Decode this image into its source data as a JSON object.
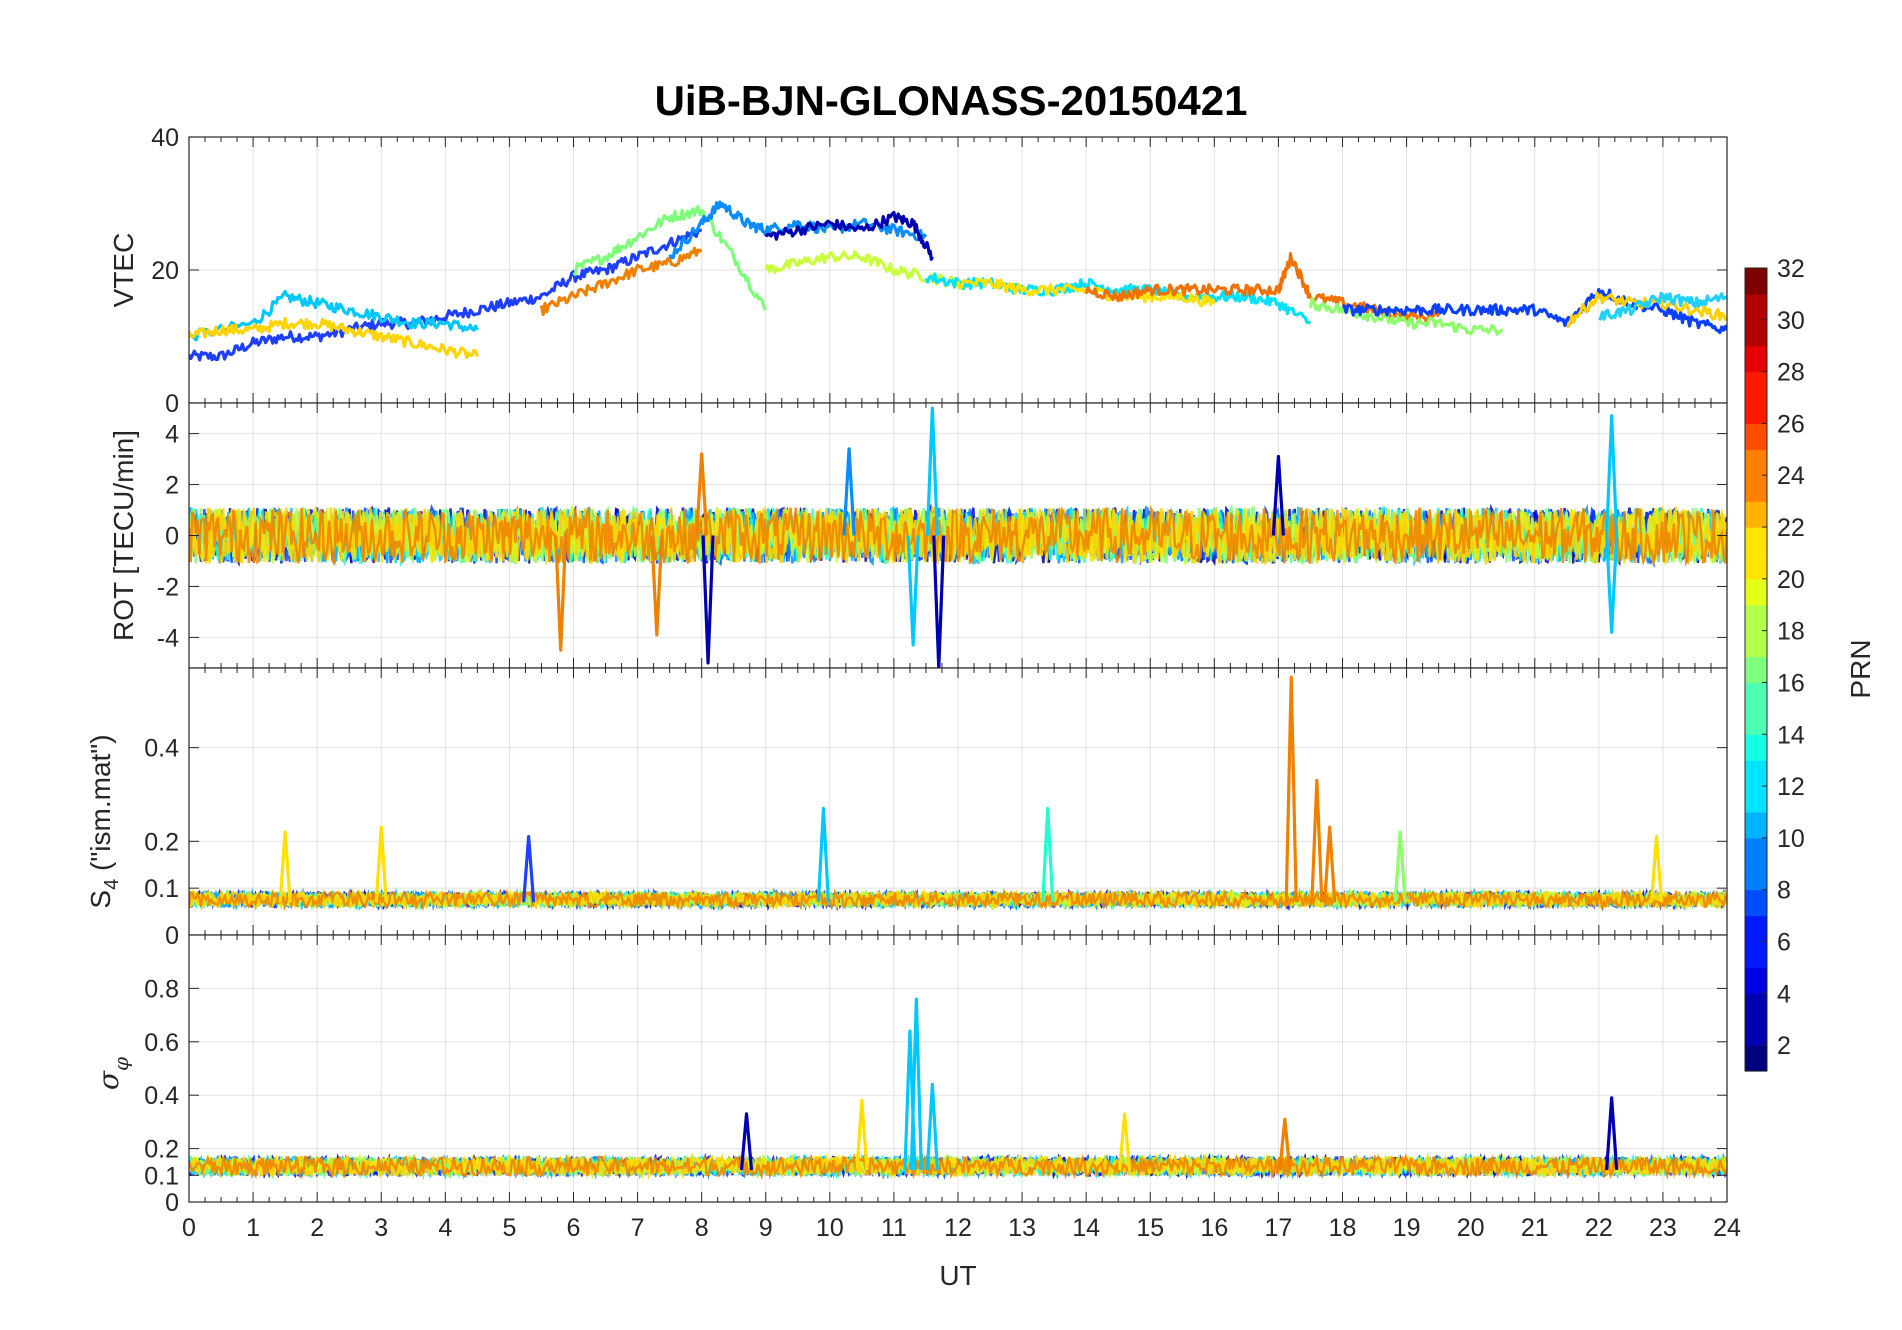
{
  "chart_data": {
    "type": "line",
    "title": "UiB-BJN-GLONASS-20150421",
    "xlabel": "UT",
    "xlim": [
      0,
      24
    ],
    "x_ticks": [
      "0",
      "1",
      "2",
      "3",
      "4",
      "5",
      "6",
      "7",
      "8",
      "9",
      "10",
      "11",
      "12",
      "13",
      "14",
      "15",
      "16",
      "17",
      "18",
      "19",
      "20",
      "21",
      "22",
      "23",
      "24"
    ],
    "grid": true,
    "color_by": "satellite PRN (jet colormap)",
    "panels": [
      {
        "ylabel": "VTEC",
        "ylim": [
          0,
          40
        ],
        "y_ticks": [
          "0",
          "20",
          "40"
        ],
        "description": "Vertical TEC per satellite pass",
        "series": [
          {
            "color": "#1f3fff",
            "x": [
              0,
              0.5,
              1,
              1.5,
              2,
              2.5,
              3,
              3.5,
              4,
              4.5,
              5,
              5.5,
              6,
              6.5,
              7,
              7.5,
              8
            ],
            "values": [
              7,
              7,
              9,
              10,
              10,
              11,
              12,
              12,
              13,
              14,
              15,
              16,
              19,
              20,
              22,
              24,
              26
            ]
          },
          {
            "color": "#00c8ff",
            "x": [
              0,
              1,
              1.5,
              2,
              2.5,
              3,
              3.5,
              4,
              4.5
            ],
            "values": [
              10,
              12,
              16,
              15,
              14,
              13,
              12,
              12,
              11
            ]
          },
          {
            "color": "#ffd400",
            "x": [
              0,
              0.5,
              1,
              1.5,
              2,
              2.5,
              3,
              3.5,
              4,
              4.5
            ],
            "values": [
              10,
              11,
              11,
              12,
              12,
              11,
              10,
              9,
              8,
              7
            ]
          },
          {
            "color": "#f08000",
            "x": [
              5.5,
              6,
              6.5,
              7,
              7.5,
              8
            ],
            "values": [
              14,
              16,
              18,
              20,
              21,
              23
            ]
          },
          {
            "color": "#7dff7a",
            "x": [
              6,
              6.5,
              7,
              7.5,
              8,
              8.5,
              9
            ],
            "values": [
              20,
              22,
              25,
              28,
              29,
              22,
              14
            ]
          },
          {
            "color": "#0a8cff",
            "x": [
              7.5,
              8,
              8.3,
              8.7,
              9,
              9.5,
              10,
              10.5,
              11,
              11.5
            ],
            "values": [
              22,
              27,
              30,
              27,
              26,
              27,
              26,
              27,
              26,
              25
            ]
          },
          {
            "color": "#0000b0",
            "x": [
              9,
              9.5,
              10,
              10.5,
              11,
              11.3,
              11.6
            ],
            "values": [
              25,
              26,
              27,
              26,
              28,
              27,
              22
            ]
          },
          {
            "color": "#c8ff3a",
            "x": [
              9,
              9.5,
              10,
              10.5,
              11,
              11.5,
              12
            ],
            "values": [
              20,
              21,
              22,
              22,
              20,
              19,
              18
            ]
          },
          {
            "color": "#00e0ff",
            "x": [
              11.5,
              12,
              12.5,
              13,
              13.5,
              14,
              14.5,
              15,
              15.5,
              16,
              16.5,
              17,
              17.5
            ],
            "values": [
              19,
              18,
              18,
              17,
              17,
              18,
              17,
              17,
              16,
              16,
              16,
              15,
              12
            ]
          },
          {
            "color": "#ffe000",
            "x": [
              12,
              12.5,
              13,
              13.5,
              14,
              14.5,
              15,
              15.5,
              16
            ],
            "values": [
              18,
              18,
              17,
              17,
              17,
              16,
              16,
              16,
              15
            ]
          },
          {
            "color": "#f07000",
            "x": [
              14,
              14.5,
              15,
              15.5,
              16,
              16.5,
              17,
              17.2,
              17.5,
              18,
              18.5,
              19,
              19.5
            ],
            "values": [
              17,
              16,
              17,
              17,
              17,
              17,
              17,
              22,
              16,
              15,
              14,
              13,
              13
            ]
          },
          {
            "color": "#8cff6a",
            "x": [
              17.5,
              18,
              18.5,
              19,
              19.5,
              20,
              20.5
            ],
            "values": [
              15,
              14,
              13,
              12,
              12,
              11,
              11
            ]
          },
          {
            "color": "#0a40ff",
            "x": [
              18,
              18.5,
              19,
              19.5,
              20,
              20.5,
              21,
              21.5,
              22,
              22.5,
              23,
              23.5,
              24
            ],
            "values": [
              14,
              14,
              14,
              14,
              14,
              14,
              14,
              12,
              17,
              15,
              14,
              12,
              11
            ]
          },
          {
            "color": "#ffd000",
            "x": [
              21.5,
              22,
              22.5,
              23,
              23.5,
              24
            ],
            "values": [
              12,
              16,
              15,
              15,
              14,
              13
            ]
          },
          {
            "color": "#20d0ff",
            "x": [
              22,
              22.5,
              23,
              23.5,
              24
            ],
            "values": [
              13,
              14,
              16,
              15,
              16
            ]
          }
        ]
      },
      {
        "ylabel": "ROT [TECU/min]",
        "ylim": [
          -5.2,
          5.2
        ],
        "y_ticks": [
          "-4",
          "-2",
          "0",
          "2",
          "4"
        ],
        "description": "Rate of TEC, noisy around 0 with spikes",
        "spikes": [
          {
            "x": 5.8,
            "value": -4.5,
            "color": "#f08000"
          },
          {
            "x": 7.3,
            "value": -3.9,
            "color": "#f08000"
          },
          {
            "x": 8.1,
            "value": -5.0,
            "color": "#0000b0"
          },
          {
            "x": 10.3,
            "value": 3.4,
            "color": "#0a8cff"
          },
          {
            "x": 11.3,
            "value": -4.3,
            "color": "#00c8ff"
          },
          {
            "x": 11.6,
            "value": 5.0,
            "color": "#00c8ff"
          },
          {
            "x": 11.7,
            "value": -5.2,
            "color": "#0000b0"
          },
          {
            "x": 8.0,
            "value": 3.2,
            "color": "#f08000"
          },
          {
            "x": 17.0,
            "value": 3.1,
            "color": "#0000b0"
          },
          {
            "x": 22.2,
            "value": 4.7,
            "color": "#00c8ff"
          },
          {
            "x": 22.2,
            "value": -3.8,
            "color": "#00c8ff"
          }
        ]
      },
      {
        "ylabel": "S4 (\"ism.mat\")",
        "ylim": [
          0,
          0.57
        ],
        "y_ticks": [
          "0",
          "0.1",
          "0.2",
          "0.4"
        ],
        "description": "Amplitude scintillation index S4",
        "spikes": [
          {
            "x": 1.5,
            "value": 0.22,
            "color": "#ffe000"
          },
          {
            "x": 3.0,
            "value": 0.23,
            "color": "#ffe000"
          },
          {
            "x": 5.3,
            "value": 0.21,
            "color": "#1f3fff"
          },
          {
            "x": 9.9,
            "value": 0.27,
            "color": "#00c8ff"
          },
          {
            "x": 13.4,
            "value": 0.27,
            "color": "#20ffcf"
          },
          {
            "x": 17.2,
            "value": 0.55,
            "color": "#f08000"
          },
          {
            "x": 17.6,
            "value": 0.33,
            "color": "#f08000"
          },
          {
            "x": 17.8,
            "value": 0.23,
            "color": "#f08000"
          },
          {
            "x": 18.9,
            "value": 0.22,
            "color": "#8cff6a"
          },
          {
            "x": 22.9,
            "value": 0.21,
            "color": "#ffe000"
          }
        ]
      },
      {
        "ylabel": "σφ",
        "ylim": [
          0,
          1
        ],
        "y_ticks": [
          "0",
          "0.1",
          "0.2",
          "0.4",
          "0.6",
          "0.8"
        ],
        "description": "Phase scintillation index sigma-phi",
        "spikes": [
          {
            "x": 11.35,
            "value": 0.76,
            "color": "#00c8ff"
          },
          {
            "x": 11.25,
            "value": 0.64,
            "color": "#00c8ff"
          },
          {
            "x": 11.6,
            "value": 0.44,
            "color": "#00c8ff"
          },
          {
            "x": 8.7,
            "value": 0.33,
            "color": "#0000b0"
          },
          {
            "x": 10.5,
            "value": 0.38,
            "color": "#ffe000"
          },
          {
            "x": 22.2,
            "value": 0.39,
            "color": "#0000b0"
          },
          {
            "x": 14.6,
            "value": 0.33,
            "color": "#ffe000"
          },
          {
            "x": 17.1,
            "value": 0.31,
            "color": "#f08000"
          }
        ]
      }
    ],
    "colorbar": {
      "label": "PRN",
      "range": [
        1,
        32
      ],
      "ticks": [
        "2",
        "4",
        "6",
        "8",
        "10",
        "12",
        "14",
        "16",
        "18",
        "20",
        "22",
        "24",
        "26",
        "28",
        "30",
        "32"
      ]
    }
  }
}
